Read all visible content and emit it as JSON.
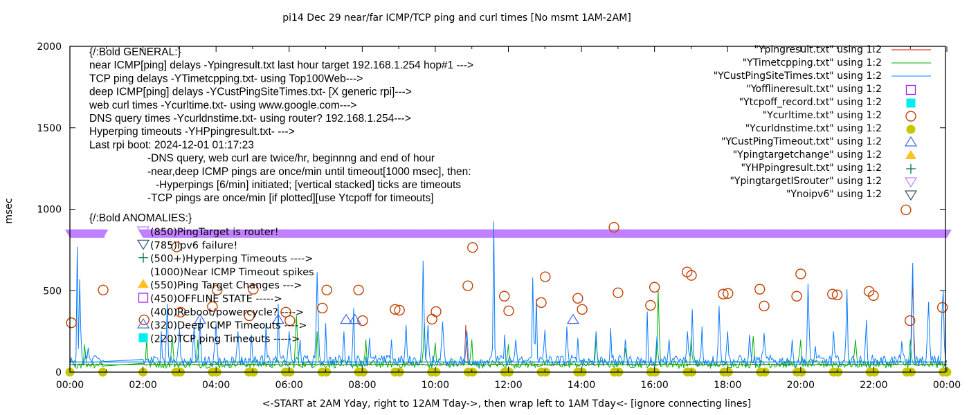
{
  "chart_data": {
    "type": "line",
    "title": "pi14 Dec 29  near/far ICMP/TCP ping and curl times [No msmt 1AM-2AM]",
    "xlabel": "<-START at 2AM Yday, right to 12AM Tday->, then wrap left to 1AM Tday<- [ignore connecting lines]",
    "ylabel": "msec",
    "xlim_hours": [
      0,
      24
    ],
    "ylim": [
      0,
      2000
    ],
    "x_tick_labels": [
      "00:00",
      "02:00",
      "04:00",
      "06:00",
      "08:00",
      "10:00",
      "12:00",
      "14:00",
      "16:00",
      "18:00",
      "20:00",
      "22:00",
      "00:00"
    ],
    "y_tick_labels": [
      "0",
      "500",
      "1000",
      "1500",
      "2000"
    ],
    "y_ticks": [
      0,
      500,
      1000,
      1500,
      2000
    ],
    "grid": false,
    "legend_position": "top-right",
    "legend": [
      {
        "label": "\"Ypingresult.txt\" using 1:2",
        "style": "line",
        "color": "#ff0000"
      },
      {
        "label": "\"YTimetcpping.txt\" using 1:2",
        "style": "line",
        "color": "#00b000"
      },
      {
        "label": "\"YCustPingSiteTimes.txt\" using 1:2",
        "style": "line",
        "color": "#0a7cff"
      },
      {
        "label": "\"Yofflineresult.txt\" using 1:2",
        "style": "open-square",
        "color": "#a020f0"
      },
      {
        "label": "\"Ytcpoff_record.txt\" using 1:2",
        "style": "filled-square",
        "color": "#00eeee"
      },
      {
        "label": "\"Ycurltime.txt\" using 1:2",
        "style": "open-circle",
        "color": "#c04000"
      },
      {
        "label": "\"Ycurldnstime.txt\" using 1:2",
        "style": "filled-circle",
        "color": "#c8c800"
      },
      {
        "label": "\"YCustPingTimeout.txt\" using 1:2",
        "style": "open-triangle",
        "color": "#4169e1"
      },
      {
        "label": "\"Ypingtargetchange\" using 1:2",
        "style": "filled-triangle",
        "color": "#ffc020"
      },
      {
        "label": "\"YHPpingresult.txt\" using 1:2",
        "style": "plus",
        "color": "#007040"
      },
      {
        "label": "\"YpingtargetISrouter\" using 1:2",
        "style": "open-down-triangle",
        "color": "#c080ff"
      },
      {
        "label": "\"Ynoipv6\" using 1:2",
        "style": "open-down-triangle",
        "color": "#305870"
      }
    ],
    "series": {
      "Ypingresult": {
        "baseline": 45,
        "peaks": [
          [
            10.83,
            290
          ],
          [
            23.05,
            560
          ]
        ]
      },
      "YTimetcpping": {
        "baseline": 45,
        "peaks": [
          [
            0.4,
            170
          ],
          [
            2.1,
            200
          ],
          [
            2.8,
            220
          ],
          [
            3.5,
            200
          ],
          [
            6.2,
            350
          ],
          [
            6.75,
            250
          ],
          [
            8.1,
            200
          ],
          [
            9.7,
            300
          ],
          [
            10.0,
            180
          ],
          [
            11.0,
            200
          ],
          [
            12.0,
            170
          ],
          [
            14.4,
            200
          ],
          [
            15.2,
            150
          ],
          [
            16.1,
            504
          ],
          [
            17.0,
            210
          ],
          [
            18.7,
            220
          ],
          [
            20.0,
            200
          ],
          [
            21.5,
            200
          ],
          [
            23.0,
            200
          ]
        ]
      },
      "YCustPingSiteTimes": {
        "baseline": 62,
        "peaks": [
          [
            0.19,
            770
          ],
          [
            0.28,
            570
          ],
          [
            0.5,
            150
          ],
          [
            2.5,
            250
          ],
          [
            2.65,
            420
          ],
          [
            3.0,
            270
          ],
          [
            3.4,
            280
          ],
          [
            3.55,
            330
          ],
          [
            4.0,
            300
          ],
          [
            4.6,
            250
          ],
          [
            4.95,
            230
          ],
          [
            5.35,
            300
          ],
          [
            5.7,
            420
          ],
          [
            6.0,
            250
          ],
          [
            6.3,
            200
          ],
          [
            6.78,
            615
          ],
          [
            7.0,
            300
          ],
          [
            7.5,
            250
          ],
          [
            7.77,
            393
          ],
          [
            8.2,
            210
          ],
          [
            8.8,
            200
          ],
          [
            9.2,
            290
          ],
          [
            9.66,
            684
          ],
          [
            9.8,
            290
          ],
          [
            10.2,
            310
          ],
          [
            10.85,
            250
          ],
          [
            11.61,
            927
          ],
          [
            11.9,
            230
          ],
          [
            12.2,
            200
          ],
          [
            12.67,
            581
          ],
          [
            12.75,
            450
          ],
          [
            13.0,
            260
          ],
          [
            13.6,
            280
          ],
          [
            13.9,
            210
          ],
          [
            14.4,
            250
          ],
          [
            14.8,
            270
          ],
          [
            15.2,
            200
          ],
          [
            15.8,
            372
          ],
          [
            16.07,
            220
          ],
          [
            16.4,
            200
          ],
          [
            16.9,
            250
          ],
          [
            17.03,
            385
          ],
          [
            17.3,
            280
          ],
          [
            17.75,
            406
          ],
          [
            18.0,
            250
          ],
          [
            18.6,
            230
          ],
          [
            19.0,
            240
          ],
          [
            19.75,
            200
          ],
          [
            20.19,
            543
          ],
          [
            20.4,
            160
          ],
          [
            20.9,
            250
          ],
          [
            21.25,
            508
          ],
          [
            21.8,
            320
          ],
          [
            22.75,
            190
          ],
          [
            23.07,
            671
          ],
          [
            23.5,
            430
          ],
          [
            23.85,
            370
          ],
          [
            23.9,
            500
          ]
        ]
      },
      "Ycurltime": [
        [
          0.04,
          303
        ],
        [
          0.91,
          504
        ],
        [
          2.03,
          321
        ],
        [
          2.92,
          769
        ],
        [
          3.03,
          368
        ],
        [
          3.9,
          402
        ],
        [
          4.03,
          504
        ],
        [
          4.91,
          346
        ],
        [
          5.02,
          509
        ],
        [
          5.91,
          368
        ],
        [
          6.02,
          316
        ],
        [
          6.91,
          393
        ],
        [
          7.03,
          504
        ],
        [
          7.9,
          504
        ],
        [
          8.01,
          316
        ],
        [
          8.9,
          385
        ],
        [
          9.02,
          380
        ],
        [
          9.91,
          325
        ],
        [
          10.02,
          372
        ],
        [
          10.89,
          530
        ],
        [
          11.02,
          765
        ],
        [
          11.89,
          466
        ],
        [
          12.01,
          376
        ],
        [
          12.9,
          427
        ],
        [
          13.01,
          585
        ],
        [
          13.9,
          453
        ],
        [
          14.02,
          385
        ],
        [
          14.89,
          889
        ],
        [
          15.0,
          487
        ],
        [
          15.89,
          410
        ],
        [
          16.0,
          521
        ],
        [
          16.89,
          615
        ],
        [
          17.01,
          594
        ],
        [
          17.88,
          479
        ],
        [
          18.01,
          483
        ],
        [
          18.88,
          509
        ],
        [
          19.0,
          406
        ],
        [
          19.89,
          466
        ],
        [
          20.0,
          603
        ],
        [
          20.87,
          479
        ],
        [
          21.0,
          474
        ],
        [
          21.87,
          496
        ],
        [
          21.99,
          470
        ],
        [
          22.88,
          996
        ],
        [
          22.99,
          316
        ],
        [
          23.88,
          397
        ]
      ],
      "Ycurldnstime": [
        [
          0,
          0
        ],
        [
          0.9,
          0
        ],
        [
          2.0,
          0
        ],
        [
          2.9,
          0
        ],
        [
          3.02,
          0
        ],
        [
          3.9,
          0
        ],
        [
          4.02,
          0
        ],
        [
          4.9,
          0
        ],
        [
          5.02,
          0
        ],
        [
          5.9,
          0
        ],
        [
          6.02,
          0
        ],
        [
          6.9,
          0
        ],
        [
          7.02,
          0
        ],
        [
          7.9,
          0
        ],
        [
          8.02,
          0
        ],
        [
          8.9,
          0
        ],
        [
          9.02,
          0
        ],
        [
          9.9,
          0
        ],
        [
          10.02,
          0
        ],
        [
          10.9,
          0
        ],
        [
          11.02,
          0
        ],
        [
          11.9,
          0
        ],
        [
          12.02,
          0
        ],
        [
          12.9,
          0
        ],
        [
          13.02,
          0
        ],
        [
          13.9,
          0
        ],
        [
          14.02,
          0
        ],
        [
          14.9,
          0
        ],
        [
          15.02,
          0
        ],
        [
          15.9,
          0
        ],
        [
          16.02,
          0
        ],
        [
          16.9,
          0
        ],
        [
          17.02,
          0
        ],
        [
          17.9,
          0
        ],
        [
          18.02,
          0
        ],
        [
          18.9,
          0
        ],
        [
          19.02,
          0
        ],
        [
          19.9,
          0
        ],
        [
          20.02,
          0
        ],
        [
          20.9,
          0
        ],
        [
          21.02,
          0
        ],
        [
          21.9,
          0
        ],
        [
          22.02,
          0
        ],
        [
          22.9,
          0
        ],
        [
          23.02,
          0
        ],
        [
          23.9,
          0
        ],
        [
          24.0,
          0
        ]
      ],
      "YCustPingTimeout": [
        [
          3.56,
          320
        ],
        [
          5.7,
          320
        ],
        [
          7.56,
          320
        ],
        [
          7.8,
          320
        ],
        [
          13.77,
          320
        ]
      ],
      "YpingtargetISrouter": {
        "value": 850,
        "ranges": [
          [
            0.0,
            0.95
          ],
          [
            2.0,
            24.0
          ]
        ]
      }
    }
  },
  "annotations": {
    "general": [
      "{/:Bold GENERAL:}",
      "near ICMP[ping] delays -Ypingresult.txt last hour target 192.168.1.254 hop#1 --->",
      "TCP ping delays -YTimetcpping.txt- using Top100Web--->",
      "deep ICMP[ping] delays -YCustPingSiteTimes.txt- [X generic rpi]--->",
      "web curl times -Ycurltime.txt- using www.google.com--->",
      "DNS query times -Ycurldnstime.txt- using router? 192.168.1.254--->",
      "Hyperping timeouts -YHPpingresult.txt- --->",
      "Last rpi boot: 2024-12-01 01:17:23",
      "-DNS query, web curl are twice/hr, beginnng and end of hour",
      "-near,deep ICMP pings are once/min until timeout[1000 msec], then:",
      "-Hyperpings [6/min] initiated; [vertical stacked] ticks are timeouts",
      "-TCP pings are once/min [if plotted][use Ytcpoff for timeouts]",
      "{/:Bold ANOMALIES:}"
    ],
    "anomalies": [
      {
        "label": "(850)PingTarget is router!",
        "marker": "open-down-triangle",
        "color": "#c080ff"
      },
      {
        "label": "(785)ipv6 failure!",
        "marker": "open-down-triangle",
        "color": "#305870"
      },
      {
        "label": "(500+)Hyperping Timeouts ---->",
        "marker": "plus",
        "color": "#007040"
      },
      {
        "label": "(1000)Near ICMP Timeout spikes",
        "marker": "none",
        "color": ""
      },
      {
        "label": "(550)Ping Target Changes --->",
        "marker": "filled-triangle",
        "color": "#ffc020"
      },
      {
        "label": "(450)OFFLINE STATE ----->",
        "marker": "open-square",
        "color": "#a020f0"
      },
      {
        "label": "(400)Reboot/powercycle? ---->",
        "marker": "none",
        "color": ""
      },
      {
        "label": "(320)Deep ICMP Timeouts ---->",
        "marker": "open-triangle",
        "color": "#4169e1"
      },
      {
        "label": "(220)TCP ping Timeouts ----->",
        "marker": "filled-square",
        "color": "#00eeee"
      }
    ]
  }
}
